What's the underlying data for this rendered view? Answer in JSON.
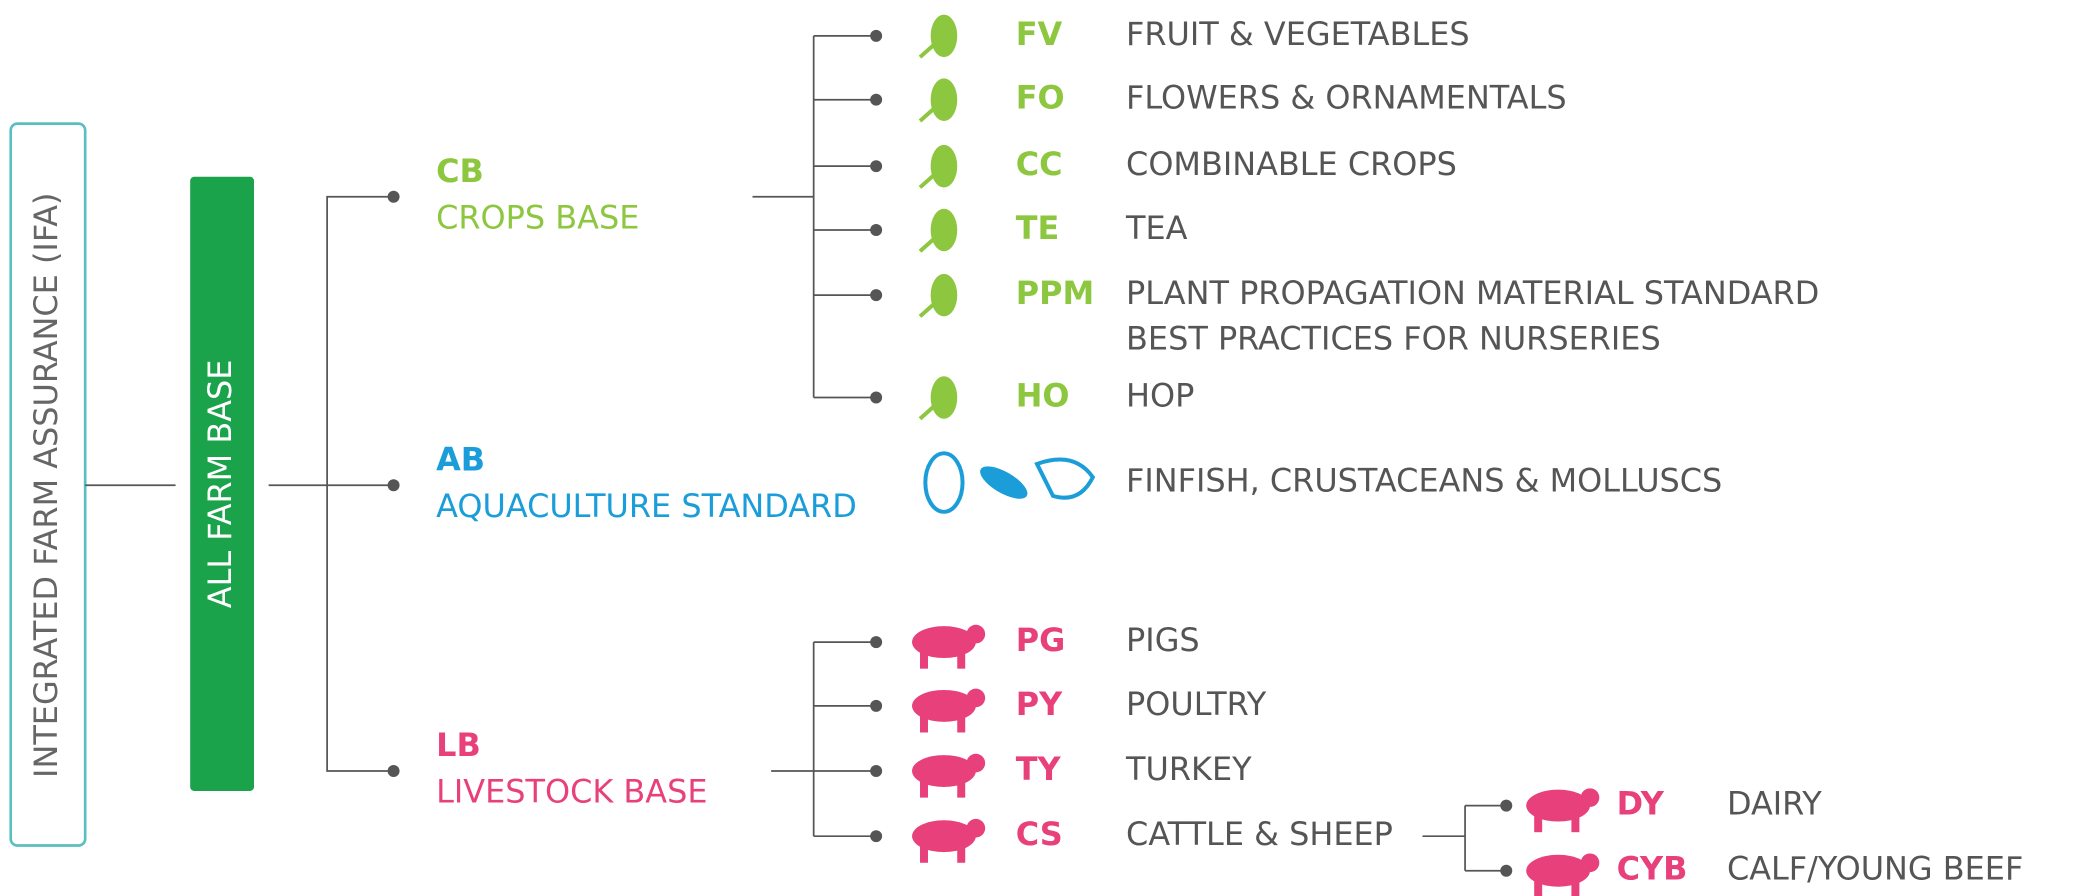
{
  "ifa": "INTEGRATED FARM ASSURANCE (IFA)",
  "base": "ALL FARM BASE",
  "branches": [
    {
      "code": "CB",
      "name": "CROPS BASE",
      "items": [
        {
          "code": "FV",
          "lines": [
            "FRUIT & VEGETABLES"
          ]
        },
        {
          "code": "FO",
          "lines": [
            "FLOWERS & ORNAMENTALS"
          ]
        },
        {
          "code": "CC",
          "lines": [
            "COMBINABLE CROPS"
          ]
        },
        {
          "code": "TE",
          "lines": [
            "TEA"
          ]
        },
        {
          "code": "PPM",
          "lines": [
            "PLANT PROPAGATION MATERIAL STANDARD",
            "BEST PRACTICES FOR NURSERIES"
          ]
        },
        {
          "code": "HO",
          "lines": [
            "HOP"
          ]
        }
      ]
    },
    {
      "code": "AB",
      "name": "AQUACULTURE STANDARD",
      "items": [
        {
          "lines": [
            "FINFISH, CRUSTACEANS & MOLLUSCS"
          ]
        }
      ]
    },
    {
      "code": "LB",
      "name": "LIVESTOCK BASE",
      "items": [
        {
          "code": "PG",
          "lines": [
            "PIGS"
          ]
        },
        {
          "code": "PY",
          "lines": [
            "POULTRY"
          ]
        },
        {
          "code": "TY",
          "lines": [
            "TURKEY"
          ]
        },
        {
          "code": "CS",
          "lines": [
            "CATTLE & SHEEP"
          ],
          "sub": [
            {
              "code": "DY",
              "lines": [
                "DAIRY"
              ]
            },
            {
              "code": "CYB",
              "lines": [
                "CALF/YOUNG BEEF"
              ]
            }
          ]
        }
      ]
    }
  ]
}
